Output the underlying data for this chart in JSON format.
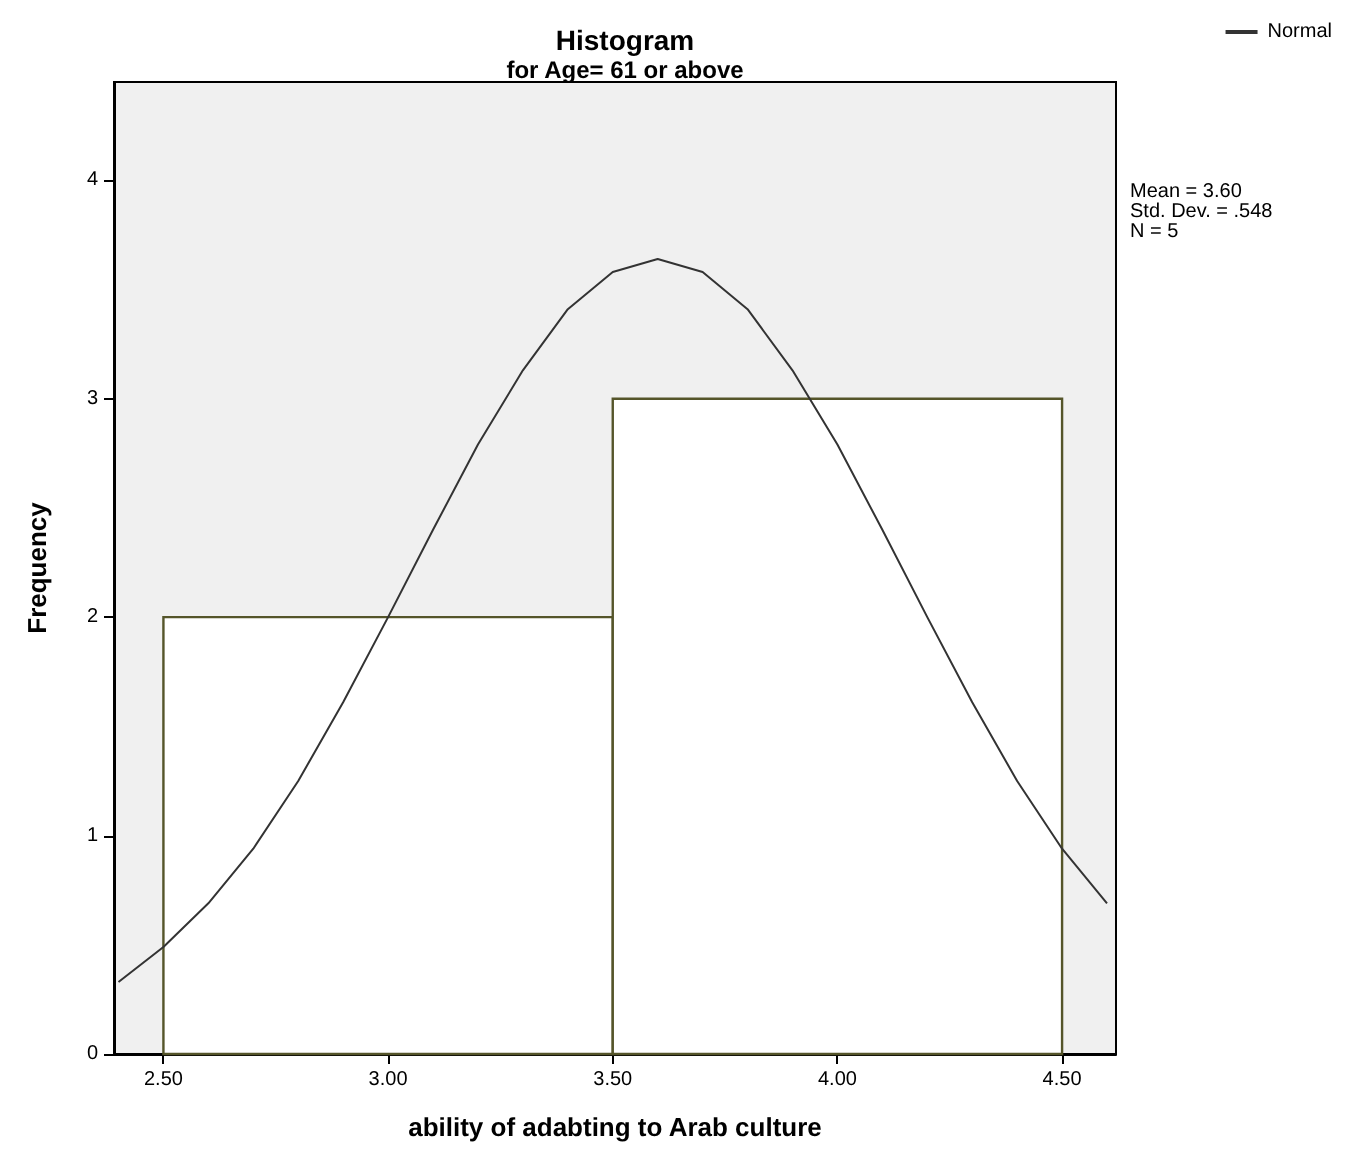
{
  "chart_data": {
    "type": "histogram",
    "title": "Histogram",
    "subtitle": "for Age= 61 or above",
    "xlabel": "ability of adabting to Arab culture",
    "ylabel": "Frequency",
    "bins": [
      2.5,
      3.5,
      4.5
    ],
    "values": [
      2,
      3
    ],
    "color": "#ffffff",
    "series": [
      {
        "type": "line",
        "name": "Normal",
        "color": "#333333",
        "x": [
          2.4,
          2.5,
          2.6,
          2.7,
          2.8,
          2.9,
          3.0,
          3.1,
          3.2,
          3.3,
          3.4,
          3.5,
          3.6,
          3.7,
          3.8,
          3.9,
          4.0,
          4.1,
          4.2,
          4.3,
          4.4,
          4.5,
          4.6
        ],
        "values": [
          0.33,
          0.49,
          0.69,
          0.94,
          1.25,
          1.61,
          2.0,
          2.4,
          2.79,
          3.13,
          3.41,
          3.58,
          3.64,
          3.58,
          3.41,
          3.13,
          2.79,
          2.4,
          2.0,
          1.61,
          1.25,
          0.94,
          0.69
        ]
      }
    ],
    "xlim": [
      2.39,
      4.62
    ],
    "xticks": [
      {
        "value": 2.5,
        "label": "2.50"
      },
      {
        "value": 3.0,
        "label": "3.00"
      },
      {
        "value": 3.5,
        "label": "3.50"
      },
      {
        "value": 4.0,
        "label": "4.00"
      },
      {
        "value": 4.5,
        "label": "4.50"
      }
    ],
    "ylim": [
      0,
      4.45
    ],
    "yticks": [
      0,
      1,
      2,
      3,
      4
    ],
    "annotations": [
      "Mean = 3.60",
      "Std. Dev. = .548",
      "N = 5"
    ],
    "legend": "top right",
    "grid": false,
    "marker": "none"
  }
}
